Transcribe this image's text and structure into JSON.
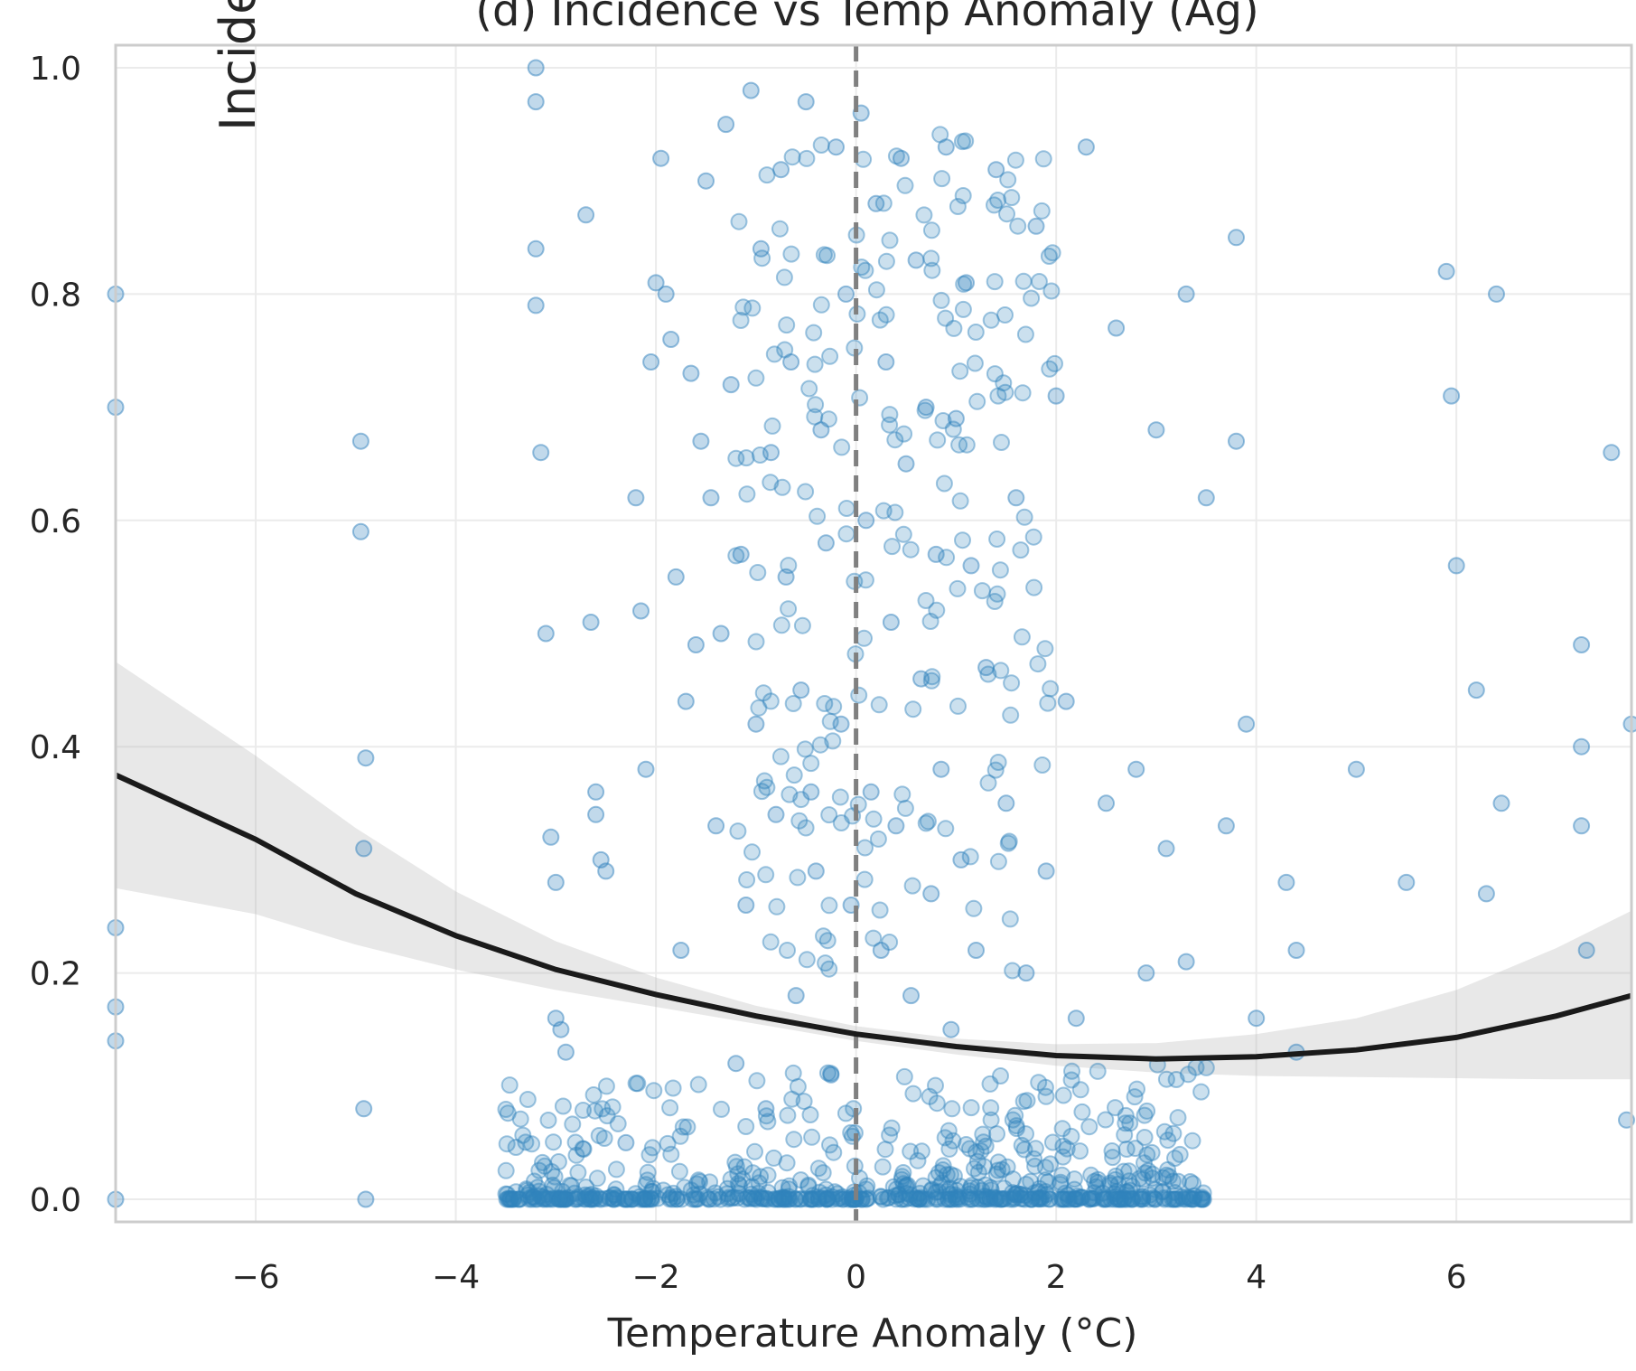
{
  "chart_data": {
    "type": "scatter",
    "title": "(d) Incidence vs Temp Anomaly (Ag)",
    "xlabel": "Temperature Anomaly (°C)",
    "ylabel_visible": "Incide",
    "xlim": [
      -7.4,
      7.75
    ],
    "ylim": [
      -0.02,
      1.02
    ],
    "xticks": [
      -6,
      -4,
      -2,
      0,
      2,
      4,
      6
    ],
    "xtick_labels": [
      "−6",
      "−4",
      "−2",
      "0",
      "2",
      "4",
      "6"
    ],
    "yticks": [
      0.0,
      0.2,
      0.4,
      0.6,
      0.8,
      1.0
    ],
    "ytick_labels": [
      "0.0",
      "0.2",
      "0.4",
      "0.6",
      "0.8",
      "1.0"
    ],
    "grid": true,
    "reference_line": {
      "x": 0,
      "style": "dashed",
      "color": "#808080"
    },
    "point_color": "#3182bd",
    "point_alpha": 0.3,
    "fit": {
      "model": "quadratic",
      "color": "#1a1a1a",
      "x": [
        -7.4,
        -6,
        -5,
        -4,
        -3,
        -2,
        -1,
        0,
        1,
        2,
        3,
        4,
        5,
        6,
        7,
        7.75
      ],
      "y": [
        0.375,
        0.318,
        0.27,
        0.233,
        0.203,
        0.181,
        0.162,
        0.146,
        0.135,
        0.127,
        0.124,
        0.126,
        0.132,
        0.143,
        0.162,
        0.18
      ],
      "ci_lower": [
        0.275,
        0.252,
        0.225,
        0.203,
        0.185,
        0.17,
        0.155,
        0.14,
        0.128,
        0.118,
        0.112,
        0.109,
        0.108,
        0.107,
        0.106,
        0.106
      ],
      "ci_upper": [
        0.475,
        0.392,
        0.328,
        0.272,
        0.228,
        0.196,
        0.171,
        0.153,
        0.142,
        0.137,
        0.138,
        0.146,
        0.16,
        0.185,
        0.222,
        0.255
      ]
    },
    "series": [
      {
        "points_x": [
          -7.4,
          -7.4,
          -7.4,
          -7.4,
          -7.4,
          -7.4,
          -4.95,
          -4.95,
          -4.92,
          -4.92,
          -4.9,
          -4.9,
          -3.2,
          -3.2,
          -3.2,
          -3.2,
          -3.15,
          -3.1,
          -3.05,
          -3.0,
          -3.0,
          -2.95,
          -2.9,
          -2.7,
          -2.65,
          -2.6,
          -2.6,
          -2.55,
          -2.5,
          -2.3,
          -2.2,
          -2.15,
          -2.1,
          -2.05,
          -2.0,
          -1.95,
          -1.9,
          -1.85,
          -1.8,
          -1.75,
          -1.7,
          -1.65,
          -1.6,
          -1.55,
          -1.5,
          -1.45,
          -1.4,
          -1.35,
          -1.3,
          -1.25,
          -1.2,
          -1.15,
          -1.1,
          -1.05,
          -1.0,
          -0.95,
          -0.9,
          -0.85,
          -0.8,
          -0.75,
          -0.7,
          -0.65,
          -0.6,
          -0.55,
          -0.5,
          -0.45,
          -0.4,
          -0.35,
          -0.3,
          -0.25,
          -0.2,
          -0.15,
          -0.1,
          -0.05,
          0.05,
          0.1,
          0.15,
          0.2,
          0.25,
          0.3,
          0.35,
          0.4,
          0.45,
          0.5,
          0.55,
          0.6,
          0.65,
          0.7,
          0.75,
          0.8,
          0.85,
          0.9,
          0.95,
          1.0,
          1.05,
          1.1,
          1.15,
          1.2,
          1.3,
          1.4,
          1.5,
          1.6,
          1.7,
          1.8,
          1.9,
          2.0,
          2.1,
          2.2,
          2.3,
          2.5,
          2.6,
          2.8,
          2.9,
          3.0,
          3.1,
          3.3,
          3.3,
          3.5,
          3.7,
          3.8,
          3.8,
          3.9,
          4.0,
          4.3,
          4.4,
          4.4,
          5.0,
          5.5,
          5.9,
          5.95,
          6.0,
          6.2,
          6.3,
          6.4,
          6.45,
          7.25,
          7.25,
          7.25,
          7.3,
          7.55,
          7.7,
          7.75
        ],
        "points_y": [
          0.8,
          0.7,
          0.24,
          0.17,
          0.14,
          0.0,
          0.67,
          0.59,
          0.31,
          0.08,
          0.39,
          0.0,
          1.0,
          0.97,
          0.84,
          0.79,
          0.66,
          0.5,
          0.32,
          0.28,
          0.16,
          0.15,
          0.13,
          0.87,
          0.51,
          0.36,
          0.34,
          0.3,
          0.29,
          0.05,
          0.62,
          0.52,
          0.38,
          0.74,
          0.81,
          0.92,
          0.8,
          0.76,
          0.55,
          0.22,
          0.44,
          0.73,
          0.49,
          0.67,
          0.9,
          0.62,
          0.33,
          0.5,
          0.95,
          0.72,
          0.12,
          0.57,
          0.26,
          0.98,
          0.42,
          0.84,
          0.08,
          0.66,
          0.34,
          0.91,
          0.55,
          0.74,
          0.18,
          0.45,
          0.97,
          0.36,
          0.29,
          0.68,
          0.58,
          0.11,
          0.93,
          0.42,
          0.8,
          0.26,
          0.96,
          0.6,
          0.36,
          0.88,
          0.22,
          0.74,
          0.51,
          0.33,
          0.92,
          0.65,
          0.18,
          0.83,
          0.46,
          0.7,
          0.27,
          0.57,
          0.38,
          0.93,
          0.15,
          0.69,
          0.3,
          0.81,
          0.56,
          0.22,
          0.47,
          0.91,
          0.35,
          0.62,
          0.2,
          0.86,
          0.29,
          0.71,
          0.44,
          0.16,
          0.93,
          0.35,
          0.77,
          0.38,
          0.2,
          0.68,
          0.31,
          0.8,
          0.21,
          0.62,
          0.33,
          0.85,
          0.67,
          0.42,
          0.16,
          0.28,
          0.22,
          0.13,
          0.38,
          0.28,
          0.82,
          0.71,
          0.56,
          0.45,
          0.27,
          0.8,
          0.35,
          0.49,
          0.4,
          0.33,
          0.22,
          0.66,
          0.07,
          0.42
        ]
      }
    ]
  }
}
